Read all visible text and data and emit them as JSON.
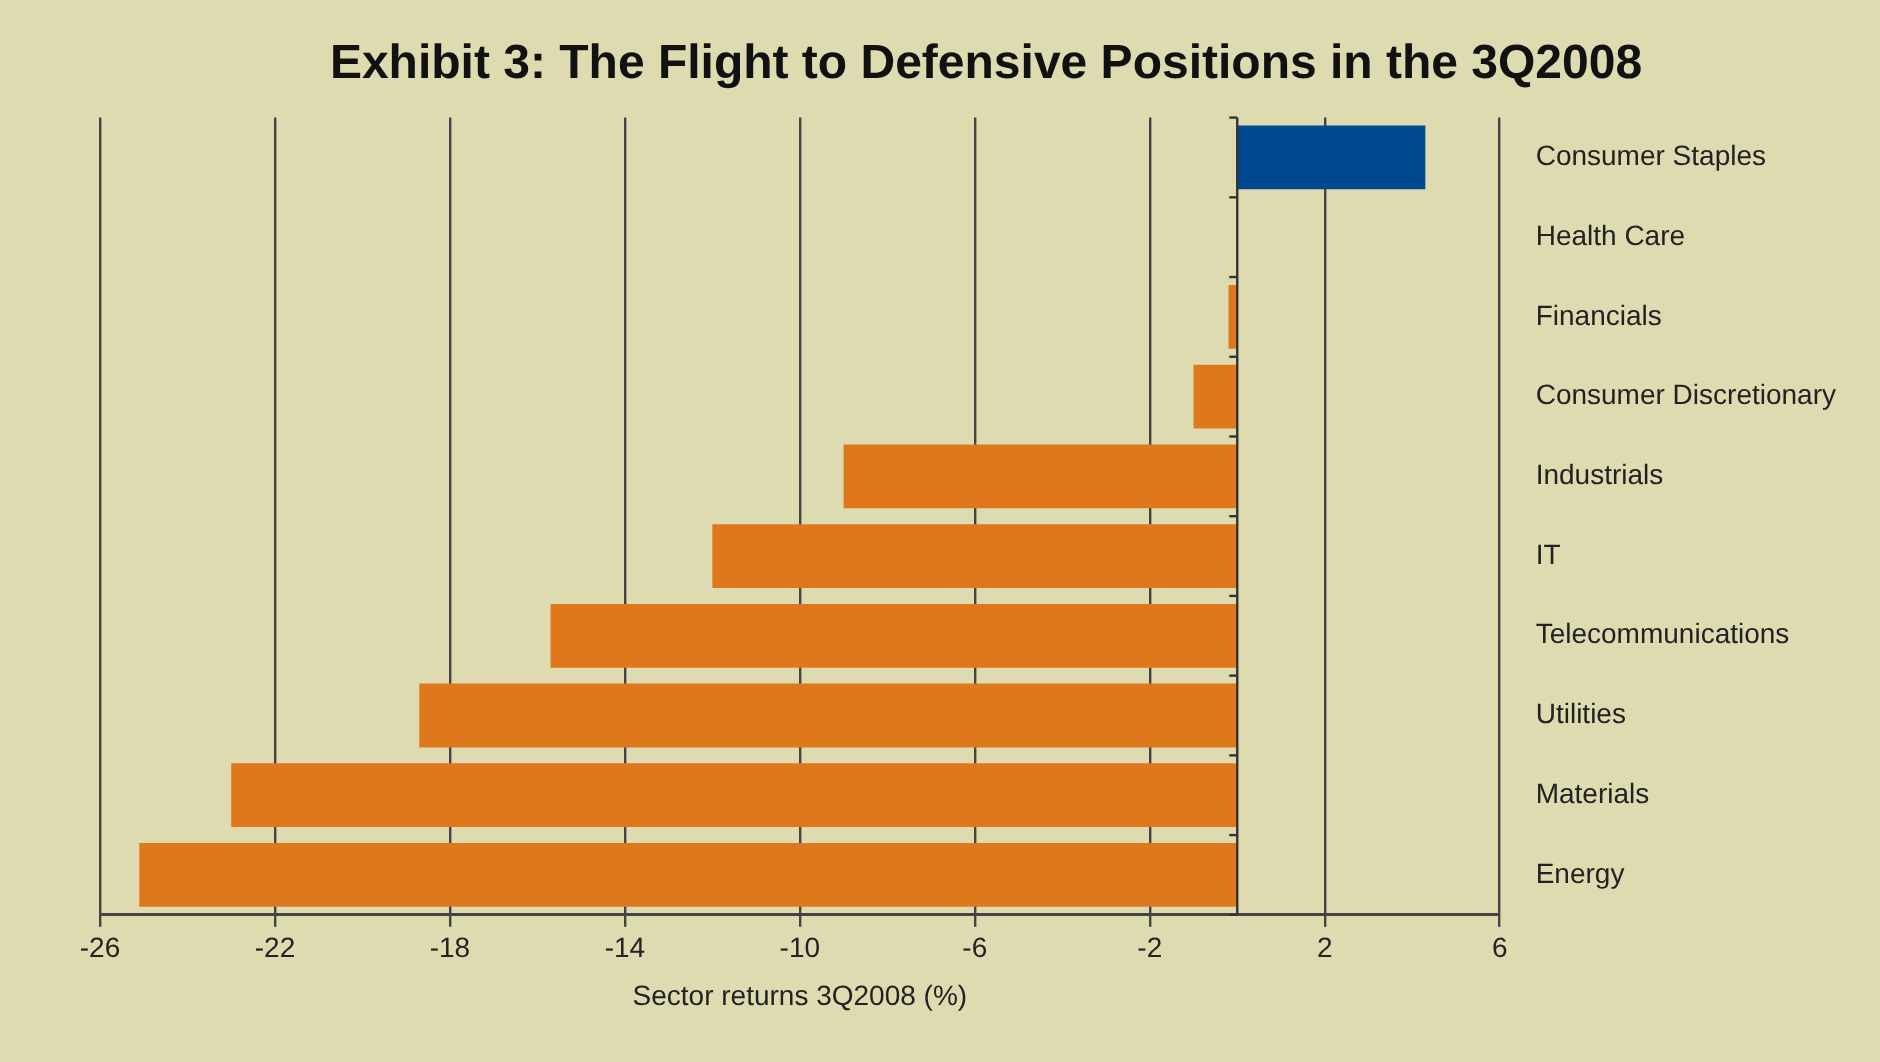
{
  "chart_data": {
    "type": "bar",
    "orientation": "horizontal",
    "title": "Exhibit 3: The Flight to Defensive Positions in the 3Q2008",
    "xlabel": "Sector returns 3Q2008 (%)",
    "categories": [
      "Consumer Staples",
      "Health Care",
      "Financials",
      "Consumer Discretionary",
      "Industrials",
      "IT",
      "Telecommunications",
      "Utilities",
      "Materials",
      "Energy"
    ],
    "values": [
      4.3,
      0,
      -0.2,
      -1.0,
      -9.0,
      -12.0,
      -15.7,
      -18.7,
      -23.0,
      -25.1
    ],
    "colors": [
      "#004990",
      "#df781c",
      "#df781c",
      "#df781c",
      "#df781c",
      "#df781c",
      "#df781c",
      "#df781c",
      "#df781c",
      "#df781c"
    ],
    "xlim": [
      -26,
      6
    ],
    "xticks": [
      -26,
      -22,
      -18,
      -14,
      -10,
      -6,
      -2,
      2,
      6
    ],
    "grid": "x",
    "legend": false
  }
}
